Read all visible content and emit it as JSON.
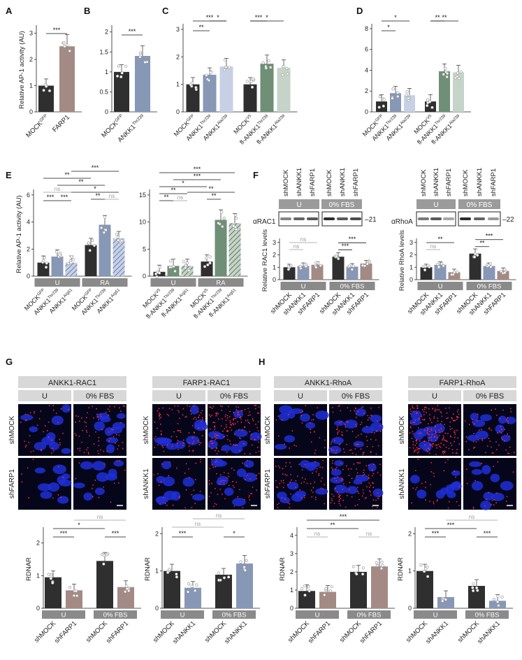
{
  "colors": {
    "mock": "#2f2f2f",
    "farp1": "#a48a84",
    "ankk1_steel": "#8797b6",
    "ankk1_light": "#c8d0e6",
    "fl_green": "#6f8f76",
    "fl_light": "#c6d3c8",
    "ra_hatch": "#8b9cc0",
    "sig": "#111111",
    "ns": "#9a9a9a",
    "cond_bar": "#8a8a8a",
    "micro_bg": "#05061a"
  },
  "panels": {
    "A": {
      "label": "A"
    },
    "B": {
      "label": "B"
    },
    "C": {
      "label": "C"
    },
    "D": {
      "label": "D"
    },
    "E": {
      "label": "E"
    },
    "F": {
      "label": "F"
    },
    "G": {
      "label": "G"
    },
    "H": {
      "label": "H"
    }
  },
  "ylabels": {
    "ap1": "Relative AP-1 activity (AU)",
    "ap1_e": "Relative AP-1 activity (AU)",
    "rac1": "Relative RAC1 levels",
    "rhoa": "Relative RhoA levels",
    "rdnar": "RDNAR"
  },
  "conditions": {
    "u": "U",
    "ra": "RA",
    "fbs": "0% FBS"
  },
  "blots": {
    "rac1": {
      "antibody": "αRAC1",
      "mw": "21",
      "lanes": [
        "shMOCK",
        "shANKK1",
        "shFARP1",
        "shMOCK",
        "shANKK1",
        "shFARP1"
      ]
    },
    "rhoa": {
      "antibody": "αRhoA",
      "mw": "22",
      "lanes": [
        "shMOCK",
        "shANKK1",
        "shFARP1",
        "shMOCK",
        "shANKK1",
        "shFARP1"
      ]
    }
  },
  "micro": {
    "G": {
      "headers": [
        "ANKK1-RAC1",
        "FARP1-RAC1"
      ],
      "row_labels_left": [
        "shMOCK",
        "shFARP1"
      ],
      "row_labels_right": [
        "shMOCK",
        "shANKK1"
      ]
    },
    "H": {
      "headers": [
        "ANKK1-RhoA",
        "FARP1-RhoA"
      ],
      "row_labels_left": [
        "shMOCK",
        "shFARP1"
      ],
      "row_labels_right": [
        "shMOCK",
        "shANKK1"
      ]
    }
  },
  "chart_data": [
    {
      "id": "A",
      "type": "bar",
      "categories": [
        "MOCKGFP",
        "FARP1"
      ],
      "values": [
        1.0,
        2.5
      ],
      "ylim": [
        0,
        3.2
      ],
      "yticks": [
        0,
        1,
        2,
        3
      ],
      "ylabel": "Relative AP-1 activity (AU)",
      "sig": [
        "***"
      ]
    },
    {
      "id": "B",
      "type": "bar",
      "categories": [
        "MOCKGFP",
        "ANKK1Thr239"
      ],
      "values": [
        1.0,
        1.4
      ],
      "ylim": [
        0,
        2.1
      ],
      "yticks": [
        0,
        0.5,
        1,
        1.5,
        2
      ],
      "sig": [
        "***"
      ]
    },
    {
      "id": "C",
      "type": "bar",
      "categories": [
        "MOCKGFP",
        "ANKK1Thr239",
        "ANKK1Ala239",
        "MOCKV5",
        "fl-ANKK1Thr239",
        "fl-ANKK1Ala239"
      ],
      "values": [
        1.0,
        1.35,
        1.65,
        1.0,
        1.75,
        1.6
      ],
      "ylim": [
        0,
        3.1
      ],
      "yticks": [
        0,
        1,
        2,
        3
      ],
      "sig": [
        "**",
        "***",
        "*",
        "***",
        "*"
      ]
    },
    {
      "id": "D",
      "type": "bar",
      "categories": [
        "MOCKGFP",
        "ANKK1Thr239",
        "ANKK1Ala239",
        "MOCKV5",
        "fl-ANKK1Thr239",
        "fl-ANKK1Ala239"
      ],
      "values": [
        1.0,
        1.8,
        1.6,
        1.0,
        3.9,
        3.8
      ],
      "ylim": [
        0,
        8.2
      ],
      "yticks": [
        0,
        2,
        4,
        6,
        8
      ],
      "sig": [
        "*",
        "*",
        "**",
        "**"
      ]
    },
    {
      "id": "E1",
      "type": "bar",
      "categories": [
        "MOCKGFP",
        "ANKK1Thr239",
        "ANKK1Arg51",
        "MOCKGFP",
        "ANKK1Thr239",
        "ANKK1Arg51"
      ],
      "groups": [
        "U",
        "RA"
      ],
      "values": [
        1.0,
        1.45,
        1.0,
        2.3,
        3.8,
        2.8
      ],
      "ylim": [
        0,
        6.2
      ],
      "yticks": [
        0,
        2,
        4,
        6
      ],
      "ylabel": "Relative AP-1 activity (AU)",
      "sig": [
        "***",
        "ns",
        "***",
        "**",
        "ns",
        "*",
        "**",
        "**",
        "***"
      ]
    },
    {
      "id": "E2",
      "type": "bar",
      "categories": [
        "MOCKV5",
        "fl-ANKK1Thr239",
        "fl-ANKK1Arg51",
        "MOCKV5",
        "fl-ANKK1Thr239",
        "fl-ANKK1Arg51"
      ],
      "groups": [
        "U",
        "RA"
      ],
      "values": [
        0.8,
        1.9,
        1.9,
        2.7,
        10.4,
        9.8
      ],
      "ylim": [
        0,
        15.5
      ],
      "yticks": [
        0,
        5,
        10,
        15
      ],
      "sig": [
        "**",
        "ns",
        "**",
        "**",
        "*",
        "**",
        "***",
        "***"
      ]
    },
    {
      "id": "F1",
      "type": "bar",
      "categories": [
        "shMOCK",
        "shANKK1",
        "shFARP1",
        "shMOCK",
        "shANKK1",
        "shFARP1"
      ],
      "groups": [
        "U",
        "0% FBS"
      ],
      "values": [
        1.0,
        1.1,
        1.2,
        1.85,
        1.05,
        1.3
      ],
      "ylim": [
        0,
        3.1
      ],
      "yticks": [
        0,
        1,
        2,
        3
      ],
      "ylabel": "Relative RAC1 levels",
      "sig": [
        "ns",
        "ns",
        "***",
        "***"
      ]
    },
    {
      "id": "F2",
      "type": "bar",
      "categories": [
        "shMOCK",
        "shANKK1",
        "shFARP1",
        "shMOCK",
        "shANKK1",
        "shFARP1"
      ],
      "groups": [
        "U",
        "0% FBS"
      ],
      "values": [
        1.0,
        1.2,
        0.6,
        2.1,
        1.1,
        0.7
      ],
      "ylim": [
        0,
        3.1
      ],
      "yticks": [
        0,
        1,
        2,
        3
      ],
      "ylabel": "Relative RhoA levels",
      "sig": [
        "ns",
        "**",
        "**",
        "***"
      ]
    },
    {
      "id": "G1",
      "type": "bar",
      "categories": [
        "shMOCK",
        "shFARP1",
        "shMOCK",
        "shFARP1"
      ],
      "groups": [
        "U",
        "0% FBS"
      ],
      "values": [
        0.95,
        0.55,
        1.45,
        0.65
      ],
      "ylim": [
        0,
        2.4
      ],
      "yticks": [
        0,
        1,
        2
      ],
      "ylabel": "RDNAR",
      "sig": [
        "***",
        "*",
        "***",
        "ns"
      ]
    },
    {
      "id": "G2",
      "type": "bar",
      "categories": [
        "shMOCK",
        "shANKK1",
        "shMOCK",
        "shANKK1"
      ],
      "groups": [
        "U",
        "0% FBS"
      ],
      "values": [
        1.0,
        0.55,
        0.9,
        1.2
      ],
      "ylim": [
        0,
        2.1
      ],
      "yticks": [
        0,
        1,
        2
      ],
      "ylabel": "RDNAR",
      "sig": [
        "***",
        "ns",
        "*",
        "ns"
      ]
    },
    {
      "id": "H1",
      "type": "bar",
      "categories": [
        "shMOCK",
        "shFARP1",
        "shMOCK",
        "shFARP1"
      ],
      "groups": [
        "U",
        "0% FBS"
      ],
      "values": [
        0.95,
        0.9,
        2.0,
        2.3
      ],
      "ylim": [
        0,
        4.3
      ],
      "yticks": [
        0,
        1,
        2,
        3,
        4
      ],
      "ylabel": "RDNAR",
      "sig": [
        "ns",
        "**",
        "ns",
        "***"
      ]
    },
    {
      "id": "H2",
      "type": "bar",
      "categories": [
        "shMOCK",
        "shANKK1",
        "shMOCK",
        "shANKK1"
      ],
      "groups": [
        "U",
        "0% FBS"
      ],
      "values": [
        1.0,
        0.3,
        0.6,
        0.2
      ],
      "ylim": [
        0,
        2.1
      ],
      "yticks": [
        0,
        1,
        2
      ],
      "ylabel": "RDNAR",
      "sig": [
        "***",
        "***",
        "***",
        "ns"
      ]
    }
  ]
}
